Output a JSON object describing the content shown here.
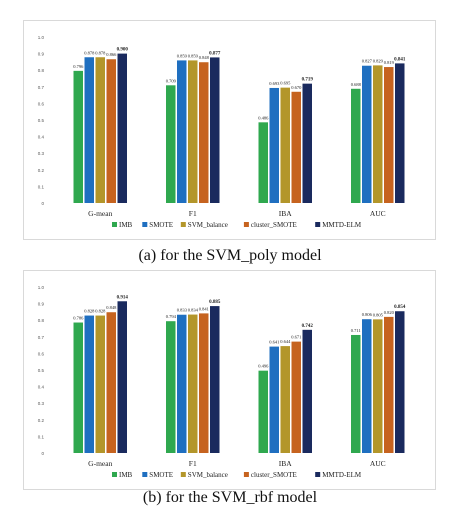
{
  "chart_data": [
    {
      "type": "bar",
      "title": "",
      "xlabel": "",
      "ylabel": "",
      "ylim": [
        0,
        1.0
      ],
      "yticks": [
        "0",
        "0.1",
        "0.2",
        "0.3",
        "0.4",
        "0.5",
        "0.6",
        "0.7",
        "0.8",
        "0.9",
        "1.0"
      ],
      "categories": [
        "G-mean",
        "F1",
        "IBA",
        "AUC"
      ],
      "series": [
        {
          "name": "IMB",
          "color": "#2fa84f",
          "values": [
            0.796,
            0.709,
            0.486,
            0.688
          ]
        },
        {
          "name": "SMOTE",
          "color": "#1f6fc0",
          "values": [
            0.878,
            0.859,
            0.693,
            0.827
          ]
        },
        {
          "name": "SVM_balance",
          "color": "#b3962a",
          "values": [
            0.878,
            0.859,
            0.695,
            0.829
          ]
        },
        {
          "name": "cluster_SMOTE",
          "color": "#c6631f",
          "values": [
            0.866,
            0.848,
            0.67,
            0.819
          ]
        },
        {
          "name": "MMTD-ELM",
          "color": "#1a2a5e",
          "values": [
            0.9,
            0.877,
            0.719,
            0.841
          ]
        }
      ],
      "labels": [
        [
          "0.796",
          "0.878",
          "0.878",
          "0.866",
          "0.900"
        ],
        [
          "0.709",
          "0.859",
          "0.859",
          "0.848",
          "0.877"
        ],
        [
          "0.486",
          "0.693",
          "0.695",
          "0.670",
          "0.719"
        ],
        [
          "0.688",
          "0.827",
          "0.829",
          "0.819",
          "0.841"
        ]
      ],
      "legend_position": "bottom",
      "caption": "(a) for the SVM_poly model"
    },
    {
      "type": "bar",
      "title": "",
      "xlabel": "",
      "ylabel": "",
      "ylim": [
        0,
        1.0
      ],
      "yticks": [
        "0",
        "0.1",
        "0.2",
        "0.3",
        "0.4",
        "0.5",
        "0.6",
        "0.7",
        "0.8",
        "0.9",
        "1.0"
      ],
      "categories": [
        "G-mean",
        "F1",
        "IBA",
        "AUC"
      ],
      "series": [
        {
          "name": "IMB",
          "color": "#2fa84f",
          "values": [
            0.786,
            0.794,
            0.496,
            0.711
          ]
        },
        {
          "name": "SMOTE",
          "color": "#1f6fc0",
          "values": [
            0.828,
            0.833,
            0.641,
            0.806
          ]
        },
        {
          "name": "SVM_balance",
          "color": "#b3962a",
          "values": [
            0.828,
            0.834,
            0.644,
            0.805
          ]
        },
        {
          "name": "cluster_SMOTE",
          "color": "#c6631f",
          "values": [
            0.848,
            0.841,
            0.671,
            0.82
          ]
        },
        {
          "name": "MMTD-ELM",
          "color": "#1a2a5e",
          "values": [
            0.914,
            0.885,
            0.742,
            0.854
          ]
        }
      ],
      "labels": [
        [
          "0.786",
          "0.828",
          "0.828",
          "0.848",
          "0.914"
        ],
        [
          "0.794",
          "0.833",
          "0.834",
          "0.841",
          "0.885"
        ],
        [
          "0.496",
          "0.641",
          "0.644",
          "0.671",
          "0.742"
        ],
        [
          "0.711",
          "0.806",
          "0.805",
          "0.820",
          "0.854"
        ]
      ],
      "legend_position": "bottom",
      "caption": "(b) for the SVM_rbf model"
    }
  ]
}
